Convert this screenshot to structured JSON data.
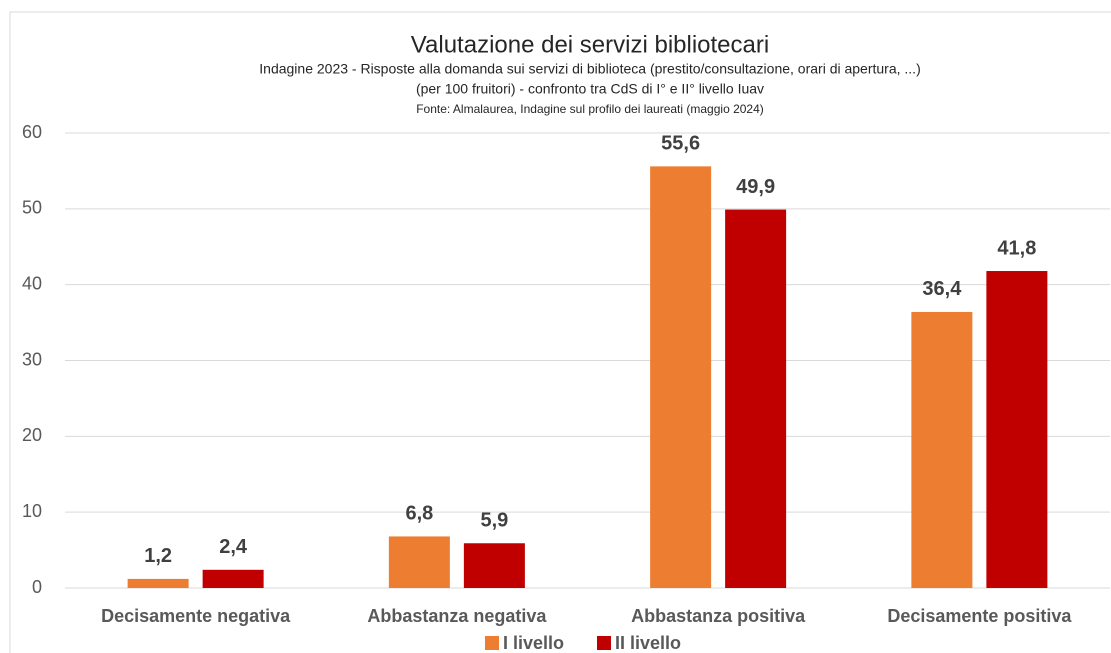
{
  "chart_data": {
    "type": "bar",
    "title": "Valutazione dei servizi bibliotecari",
    "subtitle": [
      "Indagine 2023 - Risposte alla domanda sui servizi di biblioteca (prestito/consultazione, orari di apertura, ...)",
      "(per 100 fruitori) - confronto tra CdS di I° e II° livello Iuav",
      "Fonte: Almalaurea, Indagine sul profilo dei laureati (maggio 2024)"
    ],
    "categories": [
      "Decisamente negativa",
      "Abbastanza negativa",
      "Abbastanza positiva",
      "Decisamente positiva"
    ],
    "series": [
      {
        "name": "I livello",
        "color": "#ed7d31",
        "values": [
          1.2,
          6.8,
          55.6,
          36.4
        ],
        "value_labels": [
          "1,2",
          "6,8",
          "55,6",
          "36,4"
        ]
      },
      {
        "name": "II livello",
        "color": "#c00000",
        "values": [
          2.4,
          5.9,
          49.9,
          41.8
        ],
        "value_labels": [
          "2,4",
          "5,9",
          "49,9",
          "41,8"
        ]
      }
    ],
    "ylim": [
      0,
      60
    ],
    "yticks": [
      0,
      10,
      20,
      30,
      40,
      50,
      60
    ],
    "grid": true,
    "legend": "bottom"
  }
}
